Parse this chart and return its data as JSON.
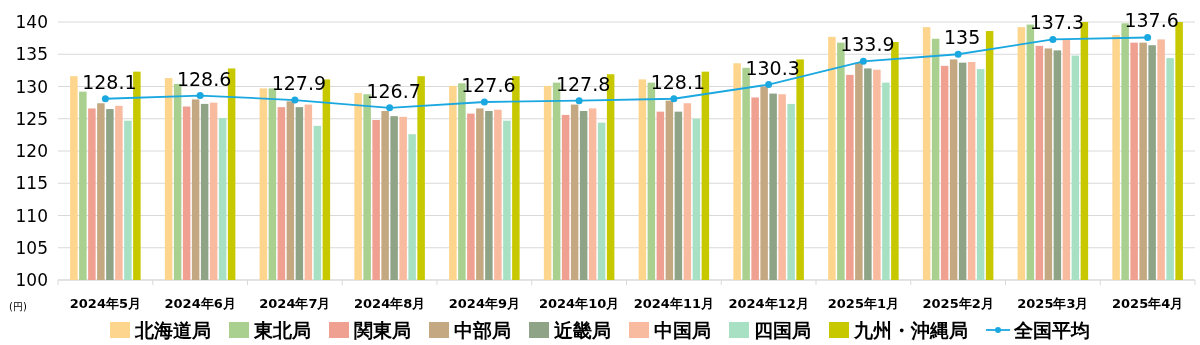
{
  "chart_data": {
    "type": "bar",
    "ylabel": "(円)",
    "categories": [
      "2024年5月",
      "2024年6月",
      "2024年7月",
      "2024年8月",
      "2024年9月",
      "2024年10月",
      "2024年11月",
      "2024年12月",
      "2025年1月",
      "2025年2月",
      "2025年3月",
      "2025年4月"
    ],
    "series": [
      {
        "name": "北海道局",
        "color": "#fdd58c",
        "values": [
          131.6,
          131.3,
          129.7,
          129.0,
          130.1,
          130.1,
          131.1,
          133.6,
          137.7,
          139.2,
          139.2,
          138.0
        ]
      },
      {
        "name": "東北局",
        "color": "#a9d08e",
        "values": [
          129.2,
          130.4,
          129.7,
          128.8,
          130.5,
          130.6,
          130.6,
          132.9,
          136.8,
          137.4,
          139.6,
          139.8
        ]
      },
      {
        "name": "関東局",
        "color": "#f0a090",
        "values": [
          126.6,
          126.9,
          126.8,
          124.8,
          125.8,
          125.6,
          126.1,
          128.3,
          131.8,
          133.2,
          136.3,
          136.8
        ]
      },
      {
        "name": "中部局",
        "color": "#c4a882",
        "values": [
          127.4,
          128.0,
          127.7,
          126.2,
          126.6,
          127.2,
          127.8,
          130.0,
          133.7,
          134.2,
          135.9,
          136.8
        ]
      },
      {
        "name": "近畿局",
        "color": "#8fa386",
        "values": [
          126.5,
          127.3,
          126.8,
          125.4,
          126.2,
          126.2,
          126.1,
          128.9,
          132.8,
          133.7,
          135.6,
          136.4
        ]
      },
      {
        "name": "中国局",
        "color": "#f8bba0",
        "values": [
          127.0,
          127.5,
          127.2,
          125.3,
          126.4,
          126.6,
          127.4,
          128.8,
          132.6,
          133.8,
          137.3,
          137.3
        ]
      },
      {
        "name": "四国局",
        "color": "#a8e0c4",
        "values": [
          124.7,
          125.1,
          123.9,
          122.6,
          124.7,
          124.4,
          125.0,
          127.3,
          130.6,
          132.7,
          134.8,
          134.4
        ]
      },
      {
        "name": "九州・沖縄局",
        "color": "#c8c800",
        "values": [
          132.3,
          132.8,
          131.1,
          131.6,
          131.6,
          131.9,
          132.3,
          134.2,
          136.9,
          138.6,
          140.0,
          140.0
        ]
      },
      {
        "name": "全国平均",
        "type": "line",
        "color": "#1ba8e0",
        "marker": "circle",
        "values": [
          128.1,
          128.6,
          127.9,
          126.7,
          127.6,
          127.8,
          128.1,
          130.3,
          133.9,
          135.0,
          137.3,
          137.6
        ],
        "value_labels": [
          "128.1",
          "128.6",
          "127.9",
          "126.7",
          "127.6",
          "127.8",
          "128.1",
          "130.3",
          "133.9",
          "135",
          "137.3",
          "137.6"
        ]
      }
    ],
    "ylim": [
      100,
      140
    ],
    "yticks": [
      100,
      105,
      110,
      115,
      120,
      125,
      130,
      135,
      140
    ],
    "grid": "y",
    "legend": "bottom"
  }
}
